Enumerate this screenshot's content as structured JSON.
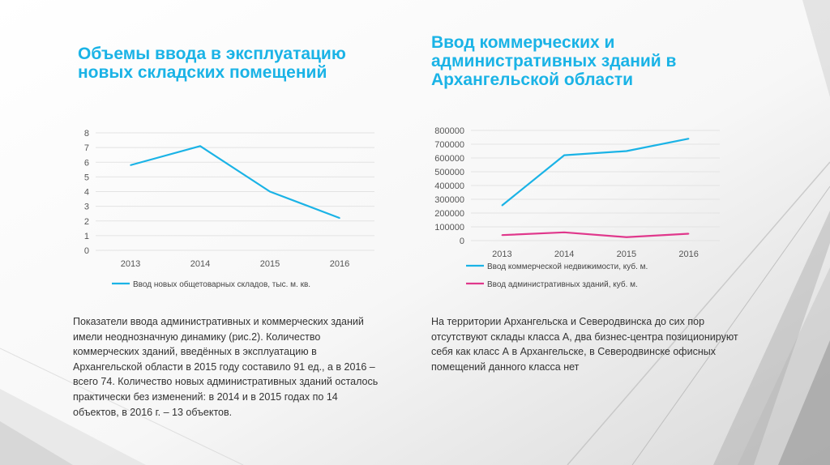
{
  "slide": {
    "title_left": "Объемы ввода в эксплуатацию новых складских помещений",
    "title_right": "Ввод коммерческих и административных зданий в Архангельской области",
    "paragraph_left": "Показатели ввода административных и коммерческих зданий имели неоднозначную динамику (рис.2). Количество коммерческих зданий, введённых в эксплуатацию в Архангельской области в 2015 году составило 91 ед., а в 2016 – всего 74. Количество новых административных зданий осталось практически без изменений: в 2014 и в 2015 годах по 14 объектов, в 2016 г. – 13 объектов.",
    "paragraph_right": "На территории Архангельска и Северодвинска до сих пор отсутствуют склады класса А, два бизнес-центра позиционируют себя как класс А в Архангельске, в Северодвинске офисных помещений данного класса нет"
  },
  "chart_data": [
    {
      "type": "line",
      "categories": [
        "2013",
        "2014",
        "2015",
        "2016"
      ],
      "series": [
        {
          "name": "Ввод новых общетоварных складов, тыс. м. кв.",
          "values": [
            5.8,
            7.1,
            4.0,
            2.2
          ],
          "color": "#1ab3e6"
        }
      ],
      "ylim": [
        0,
        8
      ],
      "yticks": [
        "0",
        "1",
        "2",
        "3",
        "4",
        "5",
        "6",
        "7",
        "8"
      ],
      "grid": true,
      "legend": "bottom"
    },
    {
      "type": "line",
      "categories": [
        "2013",
        "2014",
        "2015",
        "2016"
      ],
      "series": [
        {
          "name": "Ввод коммерческой недвижимости, куб. м.",
          "values": [
            255000,
            620000,
            650000,
            740000
          ],
          "color": "#1ab3e6"
        },
        {
          "name": "Ввод административных зданий, куб. м.",
          "values": [
            40000,
            60000,
            25000,
            50000
          ],
          "color": "#e0388c"
        }
      ],
      "ylim": [
        0,
        800000
      ],
      "yticks": [
        "0",
        "100000",
        "200000",
        "300000",
        "400000",
        "500000",
        "600000",
        "700000",
        "800000"
      ],
      "grid": true,
      "legend": "bottom"
    }
  ]
}
